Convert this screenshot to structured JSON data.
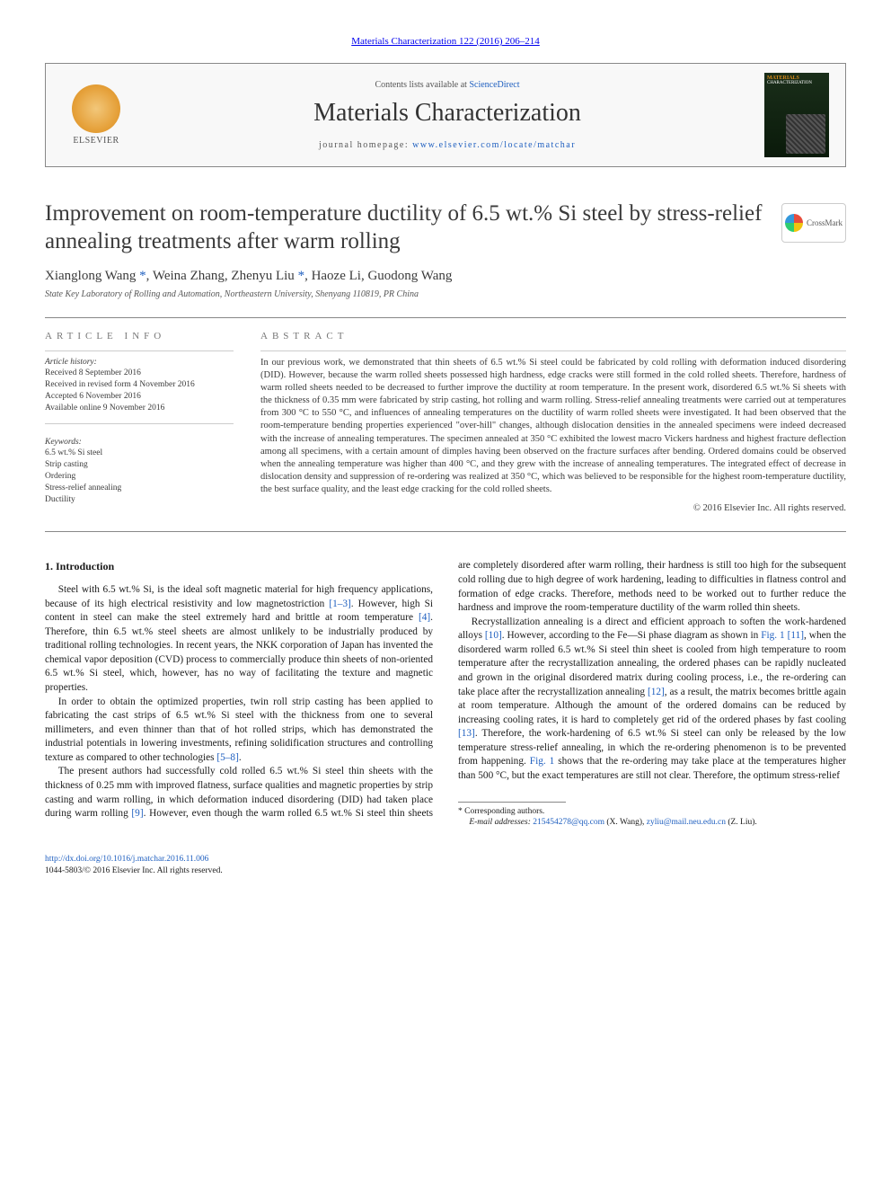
{
  "header_link": "Materials Characterization 122 (2016) 206–214",
  "publisher": {
    "name": "ELSEVIER"
  },
  "contents_text": "Contents lists available at ",
  "contents_link": "ScienceDirect",
  "journal_name": "Materials Characterization",
  "homepage_label": "journal homepage: ",
  "homepage_url": "www.elsevier.com/locate/matchar",
  "cover": {
    "brand": "MATERIALS",
    "sub": "CHARACTERIZATION"
  },
  "crossmark_label": "CrossMark",
  "title": "Improvement on room-temperature ductility of 6.5 wt.% Si steel by stress-relief annealing treatments after warm rolling",
  "authors_html": "Xianglong Wang <a href=\"#\">*</a>, Weina Zhang, Zhenyu Liu <a href=\"#\">*</a>, Haoze Li, Guodong Wang",
  "affiliation": "State Key Laboratory of Rolling and Automation, Northeastern University, Shenyang 110819, PR China",
  "article_info_heading": "article info",
  "history_label": "Article history:",
  "history": [
    "Received 8 September 2016",
    "Received in revised form 4 November 2016",
    "Accepted 6 November 2016",
    "Available online 9 November 2016"
  ],
  "keywords_label": "Keywords:",
  "keywords": [
    "6.5 wt.% Si steel",
    "Strip casting",
    "Ordering",
    "Stress-relief annealing",
    "Ductility"
  ],
  "abstract_heading": "abstract",
  "abstract": "In our previous work, we demonstrated that thin sheets of 6.5 wt.% Si steel could be fabricated by cold rolling with deformation induced disordering (DID). However, because the warm rolled sheets possessed high hardness, edge cracks were still formed in the cold rolled sheets. Therefore, hardness of warm rolled sheets needed to be decreased to further improve the ductility at room temperature. In the present work, disordered 6.5 wt.% Si sheets with the thickness of 0.35 mm were fabricated by strip casting, hot rolling and warm rolling. Stress-relief annealing treatments were carried out at temperatures from 300 °C to 550 °C, and influences of annealing temperatures on the ductility of warm rolled sheets were investigated. It had been observed that the room-temperature bending properties experienced \"over-hill\" changes, although dislocation densities in the annealed specimens were indeed decreased with the increase of annealing temperatures. The specimen annealed at 350 °C exhibited the lowest macro Vickers hardness and highest fracture deflection among all specimens, with a certain amount of dimples having been observed on the fracture surfaces after bending. Ordered domains could be observed when the annealing temperature was higher than 400 °C, and they grew with the increase of annealing temperatures. The integrated effect of decrease in dislocation density and suppression of re-ordering was realized at 350 °C, which was believed to be responsible for the highest room-temperature ductility, the best surface quality, and the least edge cracking for the cold rolled sheets.",
  "copyright": "© 2016 Elsevier Inc. All rights reserved.",
  "intro_heading": "1. Introduction",
  "para1_pre": "Steel with 6.5 wt.% Si, is the ideal soft magnetic material for high frequency applications, because of its high electrical resistivity and low magnetostriction ",
  "para1_ref1": "[1–3]",
  "para1_mid": ". However, high Si content in steel can make the steel extremely hard and brittle at room temperature ",
  "para1_ref2": "[4]",
  "para1_post": ". Therefore, thin 6.5 wt.% steel sheets are almost unlikely to be industrially produced by traditional rolling technologies. In recent years, the NKK corporation of Japan has invented the chemical vapor deposition (CVD) process to commercially produce thin sheets of non-oriented 6.5 wt.% Si steel, which, however, has no way of facilitating the texture and magnetic properties.",
  "para2_pre": "In order to obtain the optimized properties, twin roll strip casting has been applied to fabricating the cast strips of 6.5 wt.% Si steel with the thickness from one to several millimeters, and even thinner than that of hot rolled strips, which has demonstrated the industrial potentials in lowering investments, refining solidification structures and controlling texture as compared to other technologies ",
  "para2_ref": "[5–8]",
  "para2_post": ".",
  "para3_pre": "The present authors had successfully cold rolled 6.5 wt.% Si steel thin sheets with the thickness of 0.25 mm with improved flatness, surface qualities and magnetic properties by strip casting and warm rolling, in which deformation induced disordering (DID) had taken place during warm rolling ",
  "para3_ref": "[9]",
  "para3_post": ". However, even though the warm rolled 6.5 wt.% Si steel thin sheets are completely disordered after warm rolling, their hardness is still too high for the subsequent cold rolling due to high degree of work hardening, leading to difficulties in flatness control and formation of edge cracks. Therefore, methods need to be worked out to further reduce the hardness and improve the room-temperature ductility of the warm rolled thin sheets.",
  "para4_pre": "Recrystallization annealing is a direct and efficient approach to soften the work-hardened alloys ",
  "para4_ref1": "[10]",
  "para4_mid1": ". However, according to the Fe—Si phase diagram as shown in ",
  "para4_fig1": "Fig. 1",
  "para4_sp1": " ",
  "para4_ref2": "[11]",
  "para4_mid2": ", when the disordered warm rolled 6.5 wt.% Si steel thin sheet is cooled from high temperature to room temperature after the recrystallization annealing, the ordered phases can be rapidly nucleated and grown in the original disordered matrix during cooling process, i.e., the re-ordering can take place after the recrystallization annealing ",
  "para4_ref3": "[12]",
  "para4_mid3": ", as a result, the matrix becomes brittle again at room temperature. Although the amount of the ordered domains can be reduced by increasing cooling rates, it is hard to completely get rid of the ordered phases by fast cooling ",
  "para4_ref4": "[13]",
  "para4_mid4": ". Therefore, the work-hardening of 6.5 wt.% Si steel can only be released by the low temperature stress-relief annealing, in which the re-ordering phenomenon is to be prevented from happening. ",
  "para4_fig2": "Fig. 1",
  "para4_post": " shows that the re-ordering may take place at the temperatures higher than 500 °C, but the exact temperatures are still not clear. Therefore, the optimum stress-relief",
  "corr_label": "* Corresponding authors.",
  "email_label": "E-mail addresses: ",
  "email1": "215454278@qq.com",
  "email1_who": " (X. Wang), ",
  "email2": "zyliu@mail.neu.edu.cn",
  "email2_who": " (Z. Liu).",
  "doi": "http://dx.doi.org/10.1016/j.matchar.2016.11.006",
  "issn_line": "1044-5803/© 2016 Elsevier Inc. All rights reserved.",
  "colors": {
    "link": "#2060c0",
    "text": "#1a1a1a",
    "muted": "#555",
    "rule": "#888",
    "publisher_orange": "#e67817"
  },
  "fonts": {
    "body_pt": 11.3,
    "title_pt": 25,
    "journal_pt": 28,
    "abstract_pt": 10.5,
    "footnote_pt": 9.5
  }
}
